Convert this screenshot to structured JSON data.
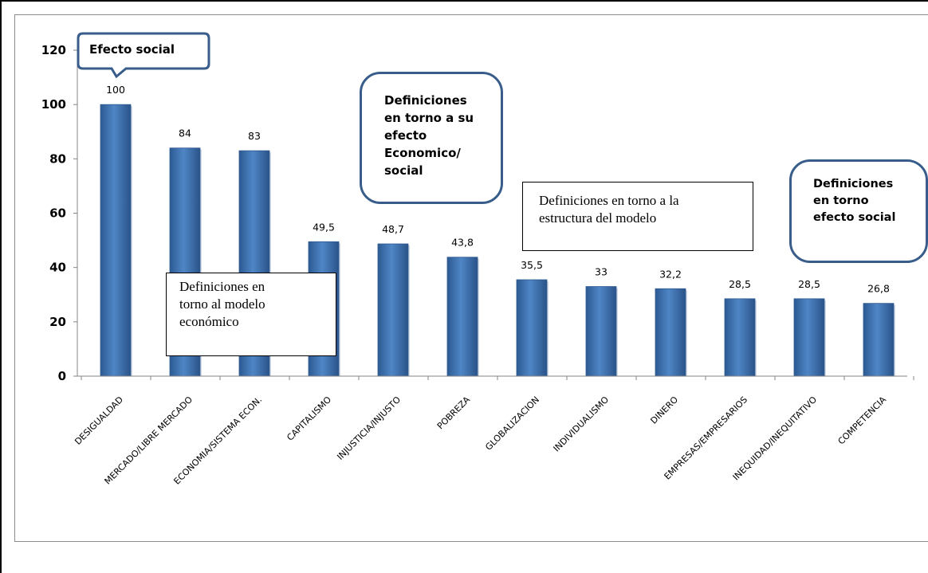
{
  "chart_data": {
    "type": "bar",
    "categories": [
      "DESIGUALDAD",
      "MERCADO/LIBRE MERCADO",
      "ECONOMIA/SISTEMA ECON.",
      "CAPITALISMO",
      "INJUSTICIA/INJUSTO",
      "POBREZA",
      "GLOBALIZACION",
      "INDIVIDUALISMO",
      "DINERO",
      "EMPRESAS/EMPRESARIOS",
      "INEQUIDAD/INEQUITATIVO",
      "COMPETENCIA"
    ],
    "values": [
      100,
      84,
      83,
      49.5,
      48.7,
      43.8,
      35.5,
      33,
      32.2,
      28.5,
      28.5,
      26.8
    ],
    "data_labels": [
      "100",
      "84",
      "83",
      "49,5",
      "48,7",
      "43,8",
      "35,5",
      "33",
      "32,2",
      "28,5",
      "28,5",
      "26,8"
    ],
    "ylim": [
      0,
      120
    ],
    "yticks": [
      0,
      20,
      40,
      60,
      80,
      100,
      120
    ],
    "grid": false,
    "bar_color": "#4a7ebb",
    "annotations": {
      "efecto_social": "Efecto social",
      "modelo_economico": [
        "Definiciones en",
        "torno al modelo",
        "económico"
      ],
      "efecto_economico_social": [
        "Definiciones",
        "en torno  a su",
        "efecto",
        "Economico/",
        "social"
      ],
      "estructura_modelo": [
        "Definiciones en torno a la",
        "estructura del modelo"
      ],
      "torno_efecto_social": [
        "Definiciones",
        "en torno",
        "efecto social"
      ]
    }
  }
}
